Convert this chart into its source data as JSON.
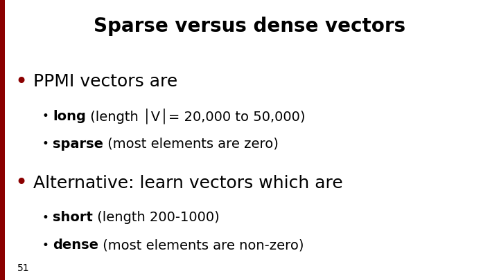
{
  "title": "Sparse versus dense vectors",
  "title_fontsize": 20,
  "title_color": "#000000",
  "background_color": "#ffffff",
  "accent_color": "#8b0000",
  "slide_number": "51",
  "bullet1": "PPMI vectors are",
  "bullet1_fontsize": 18,
  "sub_bullet1a_bold": "long",
  "sub_bullet1a_rest": " (length │V│= 20,000 to 50,000)",
  "sub_bullet1b_bold": "sparse",
  "sub_bullet1b_rest": " (most elements are zero)",
  "sub_bullet_fontsize": 14,
  "bullet2": "Alternative: learn vectors which are",
  "bullet2_fontsize": 18,
  "sub_bullet2a_bold": "short",
  "sub_bullet2a_rest": " (length 200-1000)",
  "sub_bullet2b_bold": "dense",
  "sub_bullet2b_rest": " (most elements are non-zero)",
  "left_bar_color": "#8b0000",
  "slide_number_fontsize": 10
}
